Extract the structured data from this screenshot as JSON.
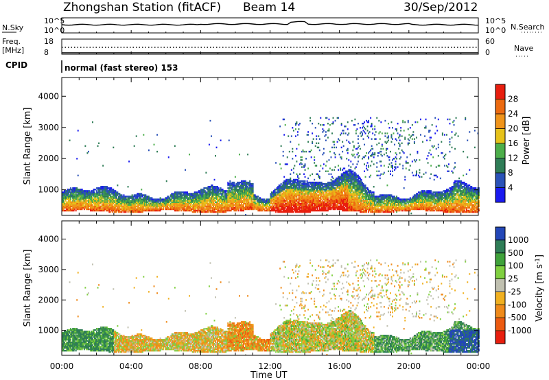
{
  "header": {
    "station": "Zhongshan Station (fitACF)",
    "beam": "Beam 14",
    "date": "30/Sep/2012"
  },
  "aux_panels": {
    "nsky_label": "N.Sky",
    "nsky_ticks": [
      "10^5",
      "10^0"
    ],
    "nsearch_label": "N.Search",
    "nsearch_ticks": [
      "10^5",
      "10^0"
    ],
    "freq_label": "Freq.",
    "freq_unit": "[MHz]",
    "freq_ticks": [
      "18",
      "8"
    ],
    "nave_label": "Nave",
    "nave_ticks": [
      "60",
      "0"
    ],
    "cpid_label": "CPID",
    "cpid_text": "normal (fast stereo) 153"
  },
  "chart_data": [
    {
      "type": "heatmap",
      "name": "power",
      "ylabel": "Slant Range [km]",
      "xlabel": "Time UT",
      "xlim_hours": [
        0,
        24
      ],
      "x_ticks": [
        "00:00",
        "04:00",
        "08:00",
        "12:00",
        "16:00",
        "20:00",
        "00:00"
      ],
      "ylim": [
        180,
        4600
      ],
      "y_ticks": [
        1000,
        2000,
        3000,
        4000
      ],
      "colorbar": {
        "label": "Power [dB]",
        "tick_labels": [
          "4",
          "8",
          "12",
          "16",
          "20",
          "24",
          "28"
        ],
        "colors": [
          "#1a1af0",
          "#2a52b8",
          "#2f7d57",
          "#4cae4a",
          "#e6c21a",
          "#f0941a",
          "#ec6a10",
          "#e81e0e"
        ]
      }
    },
    {
      "type": "heatmap",
      "name": "velocity",
      "ylabel": "Slant Range [km]",
      "xlabel": "Time UT",
      "xlim_hours": [
        0,
        24
      ],
      "x_ticks": [
        "00:00",
        "04:00",
        "08:00",
        "12:00",
        "16:00",
        "20:00",
        "00:00"
      ],
      "ylim": [
        180,
        4600
      ],
      "y_ticks": [
        1000,
        2000,
        3000,
        4000
      ],
      "colorbar": {
        "label": "Velocity [m s^-1]",
        "tick_labels": [
          "1000",
          "500",
          "100",
          "25",
          "-25",
          "-100",
          "-500",
          "-1000"
        ],
        "colors": [
          "#2347b8",
          "#2f7d57",
          "#3fa23a",
          "#80d040",
          "#c0c0b0",
          "#f0b020",
          "#ef8a1a",
          "#ec5a10",
          "#e81e0e"
        ]
      }
    }
  ],
  "xaxis_title": "Time UT"
}
